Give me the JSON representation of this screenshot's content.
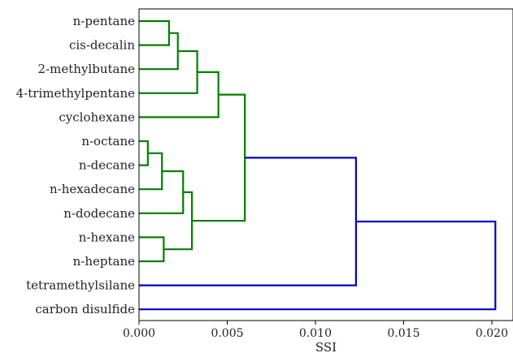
{
  "chart_data": {
    "type": "dendrogram",
    "orientation": "horizontal",
    "xlabel": "SSI",
    "xlim": [
      0.0,
      0.0212
    ],
    "xticks": [
      "0.000",
      "0.005",
      "0.010",
      "0.015",
      "0.020"
    ],
    "xtick_values": [
      0.0,
      0.005,
      0.01,
      0.015,
      0.02
    ],
    "leaves": [
      "n-pentane",
      "cis-decalin",
      "2-methylbutane",
      "4-trimethylpentane",
      "cyclohexane",
      "n-octane",
      "n-decane",
      "n-hexadecane",
      "n-dodecane",
      "n-hexane",
      "n-heptane",
      "tetramethylsilane",
      "carbon disulfide"
    ],
    "merges": [
      {
        "a": "n-pentane",
        "b": "cis-decalin",
        "height": 0.0017,
        "color": "#008000"
      },
      {
        "a": "m1",
        "b": "2-methylbutane",
        "height": 0.0022,
        "color": "#008000"
      },
      {
        "a": "m2",
        "b": "4-trimethylpentane",
        "height": 0.0033,
        "color": "#008000"
      },
      {
        "a": "m3",
        "b": "cyclohexane",
        "height": 0.0045,
        "color": "#008000"
      },
      {
        "a": "n-octane",
        "b": "n-decane",
        "height": 0.0005,
        "color": "#008000"
      },
      {
        "a": "m5",
        "b": "n-hexadecane",
        "height": 0.0013,
        "color": "#008000"
      },
      {
        "a": "m6",
        "b": "n-dodecane",
        "height": 0.0025,
        "color": "#008000"
      },
      {
        "a": "n-hexane",
        "b": "n-heptane",
        "height": 0.0014,
        "color": "#008000"
      },
      {
        "a": "m7",
        "b": "m8",
        "height": 0.003,
        "color": "#008000"
      },
      {
        "a": "m4",
        "b": "m9",
        "height": 0.006,
        "color": "#008000"
      },
      {
        "a": "m10",
        "b": "tetramethylsilane",
        "height": 0.0123,
        "color": "#0000cc"
      },
      {
        "a": "m11",
        "b": "carbon disulfide",
        "height": 0.0202,
        "color": "#0000cc"
      }
    ],
    "colors": {
      "cluster": "#008000",
      "above_threshold": "#0000cc"
    },
    "grid": false
  }
}
